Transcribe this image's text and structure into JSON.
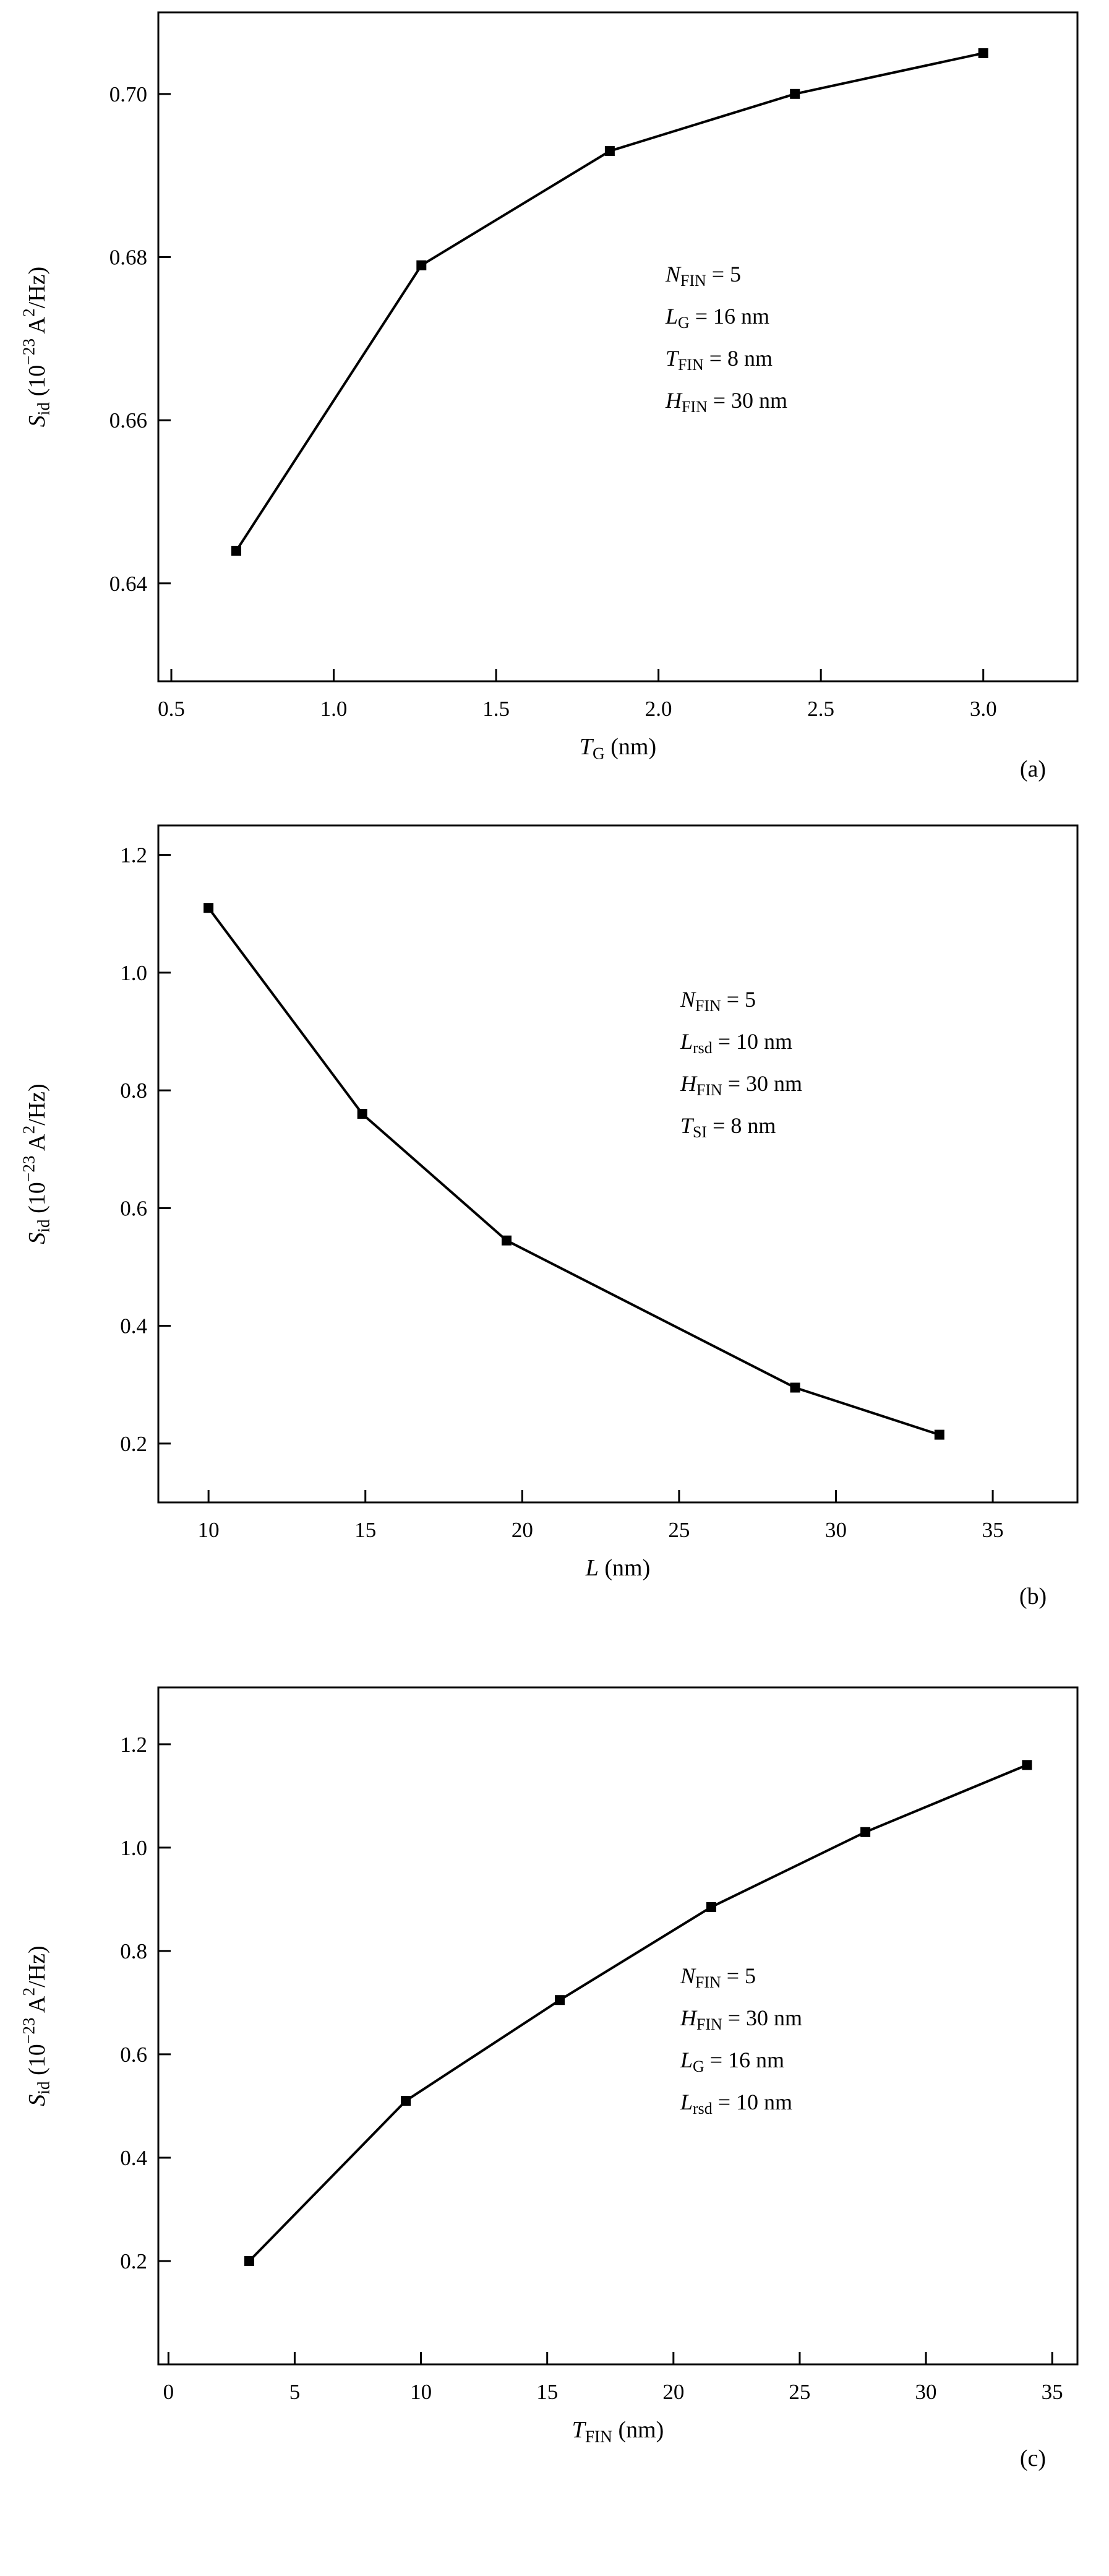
{
  "page": {
    "background": "#ffffff",
    "foreground": "#000000"
  },
  "chart_data": [
    {
      "type": "line",
      "panel_label": "(a)",
      "title": "",
      "xlabel": "T_G (nm)",
      "ylabel": "S_id (10^-23 A^2/Hz)",
      "xlabel_rich": [
        [
          "T",
          "i"
        ],
        [
          "G",
          "sub"
        ],
        [
          " (nm)",
          ""
        ]
      ],
      "ylabel_rich": [
        [
          "S",
          "i"
        ],
        [
          "id",
          "sub"
        ],
        [
          " (10",
          ""
        ],
        [
          "−23",
          "sup"
        ],
        [
          " A",
          ""
        ],
        [
          "2",
          "sup"
        ],
        [
          "/Hz)",
          ""
        ]
      ],
      "series": [
        {
          "name": "Sid vs TG",
          "x": [
            0.7,
            1.27,
            1.85,
            2.42,
            3.0
          ],
          "y": [
            0.644,
            0.679,
            0.693,
            0.7,
            0.705
          ]
        }
      ],
      "marker": "filled-square",
      "line_color": "#000000",
      "xlim": [
        0.46,
        3.29
      ],
      "ylim": [
        0.628,
        0.71
      ],
      "xticks": [
        0.5,
        1.0,
        1.5,
        2.0,
        2.5,
        3.0
      ],
      "xtick_labels": [
        "0.5",
        "1.0",
        "1.5",
        "2.0",
        "2.5",
        "3.0"
      ],
      "yticks": [
        0.64,
        0.66,
        0.68,
        0.7
      ],
      "ytick_labels": [
        "0.64",
        "0.66",
        "0.68",
        "0.70"
      ],
      "grid": false,
      "legend": "none",
      "annotation_lines_rich": [
        [
          [
            "N",
            "i"
          ],
          [
            "FIN",
            "sub"
          ],
          [
            " = 5",
            ""
          ]
        ],
        [
          [
            "L",
            "i"
          ],
          [
            "G",
            "sub"
          ],
          [
            " = 16 nm",
            ""
          ]
        ],
        [
          [
            "T",
            "i"
          ],
          [
            "FIN",
            "sub"
          ],
          [
            " = 8 nm",
            ""
          ]
        ],
        [
          [
            "H",
            "i"
          ],
          [
            "FIN",
            "sub"
          ],
          [
            " = 30 nm",
            ""
          ]
        ]
      ],
      "annotation_lines": [
        "N_FIN = 5",
        "L_G = 16 nm",
        "T_FIN = 8 nm",
        "H_FIN = 30 nm"
      ]
    },
    {
      "type": "line",
      "panel_label": "(b)",
      "title": "",
      "xlabel": "L (nm)",
      "ylabel": "S_id (10^-23 A^2/Hz)",
      "xlabel_rich": [
        [
          "L",
          "i"
        ],
        [
          " (nm)",
          ""
        ]
      ],
      "ylabel_rich": [
        [
          "S",
          "i"
        ],
        [
          "id",
          "sub"
        ],
        [
          " (10",
          ""
        ],
        [
          "−23",
          "sup"
        ],
        [
          " A",
          ""
        ],
        [
          "2",
          "sup"
        ],
        [
          "/Hz)",
          ""
        ]
      ],
      "series": [
        {
          "name": "Sid vs L",
          "x": [
            10.0,
            14.9,
            19.5,
            28.7,
            33.3
          ],
          "y": [
            1.11,
            0.76,
            0.545,
            0.295,
            0.215
          ]
        }
      ],
      "marker": "filled-square",
      "line_color": "#000000",
      "xlim": [
        8.4,
        37.7
      ],
      "ylim": [
        0.1,
        1.25
      ],
      "xticks": [
        10,
        15,
        20,
        25,
        30,
        35
      ],
      "xtick_labels": [
        "10",
        "15",
        "20",
        "25",
        "30",
        "35"
      ],
      "yticks": [
        0.2,
        0.4,
        0.6,
        0.8,
        1.0,
        1.2
      ],
      "ytick_labels": [
        "0.2",
        "0.4",
        "0.6",
        "0.8",
        "1.0",
        "1.2"
      ],
      "grid": false,
      "legend": "none",
      "annotation_lines_rich": [
        [
          [
            "N",
            "i"
          ],
          [
            "FIN",
            "sub"
          ],
          [
            " = 5",
            ""
          ]
        ],
        [
          [
            "L",
            "i"
          ],
          [
            "rsd",
            "sub"
          ],
          [
            " = 10 nm",
            ""
          ]
        ],
        [
          [
            "H",
            "i"
          ],
          [
            "FIN",
            "sub"
          ],
          [
            " = 30 nm",
            ""
          ]
        ],
        [
          [
            "T",
            "i"
          ],
          [
            "SI",
            "sub"
          ],
          [
            " = 8 nm",
            ""
          ]
        ]
      ],
      "annotation_lines": [
        "N_FIN = 5",
        "L_rsd = 10 nm",
        "H_FIN = 30 nm",
        "T_SI = 8 nm"
      ]
    },
    {
      "type": "line",
      "panel_label": "(c)",
      "title": "",
      "xlabel": "T_FIN (nm)",
      "ylabel": "S_id (10^-23 A^2/Hz)",
      "xlabel_rich": [
        [
          "T",
          "i"
        ],
        [
          "FIN",
          "sub"
        ],
        [
          " (nm)",
          ""
        ]
      ],
      "ylabel_rich": [
        [
          "S",
          "i"
        ],
        [
          "id",
          "sub"
        ],
        [
          " (10",
          ""
        ],
        [
          "−23",
          "sup"
        ],
        [
          " A",
          ""
        ],
        [
          "2",
          "sup"
        ],
        [
          "/Hz)",
          ""
        ]
      ],
      "series": [
        {
          "name": "Sid vs TFIN",
          "x": [
            3.2,
            9.4,
            15.5,
            21.5,
            27.6,
            34.0
          ],
          "y": [
            0.2,
            0.51,
            0.705,
            0.885,
            1.03,
            1.16
          ]
        }
      ],
      "marker": "filled-square",
      "line_color": "#000000",
      "xlim": [
        -0.4,
        36.0
      ],
      "ylim": [
        0.0,
        1.31
      ],
      "xticks": [
        0,
        5,
        10,
        15,
        20,
        25,
        30,
        35
      ],
      "xtick_labels": [
        "0",
        "5",
        "10",
        "15",
        "20",
        "25",
        "30",
        "35"
      ],
      "yticks": [
        0.2,
        0.4,
        0.6,
        0.8,
        1.0,
        1.2
      ],
      "ytick_labels": [
        "0.2",
        "0.4",
        "0.6",
        "0.8",
        "1.0",
        "1.2"
      ],
      "grid": false,
      "legend": "none",
      "annotation_lines_rich": [
        [
          [
            "N",
            "i"
          ],
          [
            "FIN",
            "sub"
          ],
          [
            " = 5",
            ""
          ]
        ],
        [
          [
            "H",
            "i"
          ],
          [
            "FIN",
            "sub"
          ],
          [
            " = 30 nm",
            ""
          ]
        ],
        [
          [
            "L",
            "i"
          ],
          [
            "G",
            "sub"
          ],
          [
            " = 16 nm",
            ""
          ]
        ],
        [
          [
            "L",
            "i"
          ],
          [
            "rsd",
            "sub"
          ],
          [
            " = 10 nm",
            ""
          ]
        ]
      ],
      "annotation_lines": [
        "N_FIN = 5",
        "H_FIN = 30 nm",
        "L_G = 16 nm",
        "L_rsd = 10 nm"
      ]
    }
  ]
}
